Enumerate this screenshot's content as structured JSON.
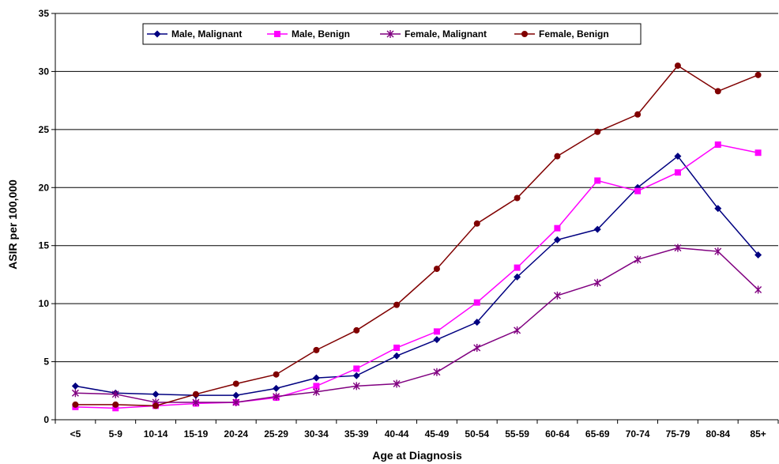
{
  "chart_data": {
    "type": "line",
    "title": "",
    "xlabel": "Age at Diagnosis",
    "ylabel": "ASIR per 100,000",
    "ylim": [
      0,
      35
    ],
    "yticks": [
      0,
      5,
      10,
      15,
      20,
      25,
      30,
      35
    ],
    "grid": "horizontal",
    "legend_position": "top",
    "categories": [
      "<5",
      "5-9",
      "10-14",
      "15-19",
      "20-24",
      "25-29",
      "30-34",
      "35-39",
      "40-44",
      "45-49",
      "50-54",
      "55-59",
      "60-64",
      "65-69",
      "70-74",
      "75-79",
      "80-84",
      "85+"
    ],
    "series": [
      {
        "name": "Male, Malignant",
        "color": "#000080",
        "marker": "diamond",
        "values": [
          2.9,
          2.3,
          2.2,
          2.1,
          2.1,
          2.7,
          3.6,
          3.8,
          5.5,
          6.9,
          8.4,
          12.3,
          15.5,
          16.4,
          20.0,
          22.7,
          18.2,
          14.2
        ]
      },
      {
        "name": "Male, Benign",
        "color": "#ff00ff",
        "marker": "square",
        "values": [
          1.1,
          1.0,
          1.2,
          1.4,
          1.5,
          1.9,
          2.9,
          4.4,
          6.2,
          7.6,
          10.1,
          13.1,
          16.5,
          20.6,
          19.7,
          21.3,
          23.7,
          23.0
        ]
      },
      {
        "name": "Female, Malignant",
        "color": "#800080",
        "marker": "asterisk",
        "values": [
          2.3,
          2.2,
          1.5,
          1.5,
          1.5,
          2.0,
          2.4,
          2.9,
          3.1,
          4.1,
          6.2,
          7.7,
          10.7,
          11.8,
          13.8,
          14.8,
          14.5,
          11.2
        ]
      },
      {
        "name": "Female, Benign",
        "color": "#800000",
        "marker": "circle",
        "values": [
          1.3,
          1.3,
          1.2,
          2.2,
          3.1,
          3.9,
          6.0,
          7.7,
          9.9,
          13.0,
          16.9,
          19.1,
          22.7,
          24.8,
          26.3,
          30.5,
          28.3,
          29.7
        ]
      }
    ]
  }
}
